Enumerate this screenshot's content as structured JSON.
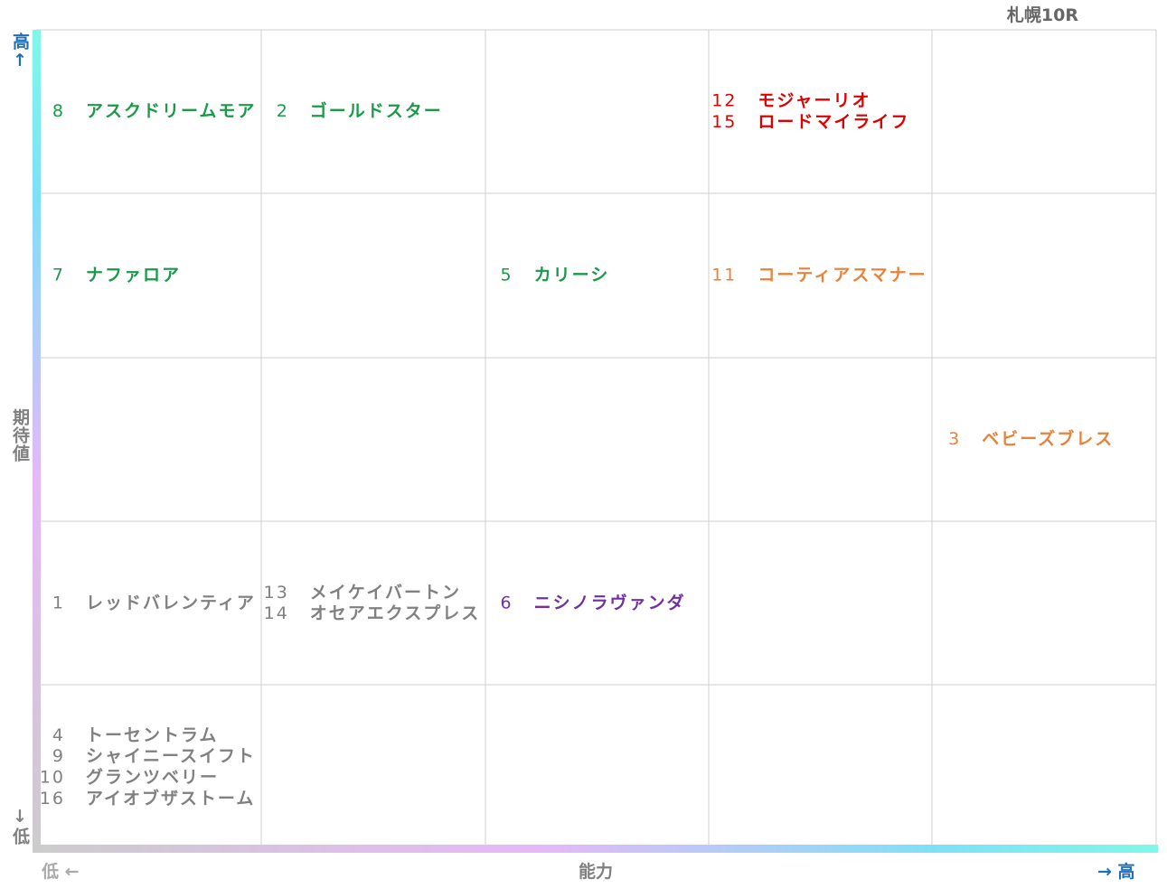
{
  "title": "札幌10R",
  "y_axis": {
    "high": "高↑",
    "label": "期待値",
    "low": "↓低"
  },
  "x_axis": {
    "low": "低 ←",
    "label": "能力",
    "high": "→ 高"
  },
  "rows": [
    [
      [
        {
          "number": 8,
          "name": "アスクドリームモア",
          "color": "#1a9a48"
        }
      ],
      [
        {
          "number": 2,
          "name": "ゴールドスター",
          "color": "#1a9a48"
        }
      ],
      [],
      [
        {
          "number": 12,
          "name": "モジャーリオ",
          "color": "#e00000"
        },
        {
          "number": 15,
          "name": "ロードマイライフ",
          "color": "#e00000"
        }
      ],
      []
    ],
    [
      [
        {
          "number": 7,
          "name": "ナファロア",
          "color": "#1a9a48"
        }
      ],
      [],
      [
        {
          "number": 5,
          "name": "カリーシ",
          "color": "#1a9a48"
        }
      ],
      [
        {
          "number": 11,
          "name": "コーティアスマナー",
          "color": "#e8823a"
        }
      ],
      []
    ],
    [
      [],
      [],
      [],
      [],
      [
        {
          "number": 3,
          "name": "ベビーズブレス",
          "color": "#e8823a"
        }
      ]
    ],
    [
      [
        {
          "number": 1,
          "name": "レッドバレンティア",
          "color": "#808080"
        }
      ],
      [
        {
          "number": 13,
          "name": "メイケイバートン",
          "color": "#808080"
        },
        {
          "number": 14,
          "name": "オセアエクスプレス",
          "color": "#808080"
        }
      ],
      [
        {
          "number": 6,
          "name": "ニシノラヴァンダ",
          "color": "#7030a0"
        }
      ],
      [],
      []
    ],
    [
      [
        {
          "number": 4,
          "name": "トーセントラム",
          "color": "#808080"
        },
        {
          "number": 9,
          "name": "シャイニースイフト",
          "color": "#808080"
        },
        {
          "number": 10,
          "name": "グランツベリー",
          "color": "#808080"
        },
        {
          "number": 16,
          "name": "アイオブザストーム",
          "color": "#808080"
        }
      ],
      [],
      [],
      [],
      []
    ]
  ]
}
